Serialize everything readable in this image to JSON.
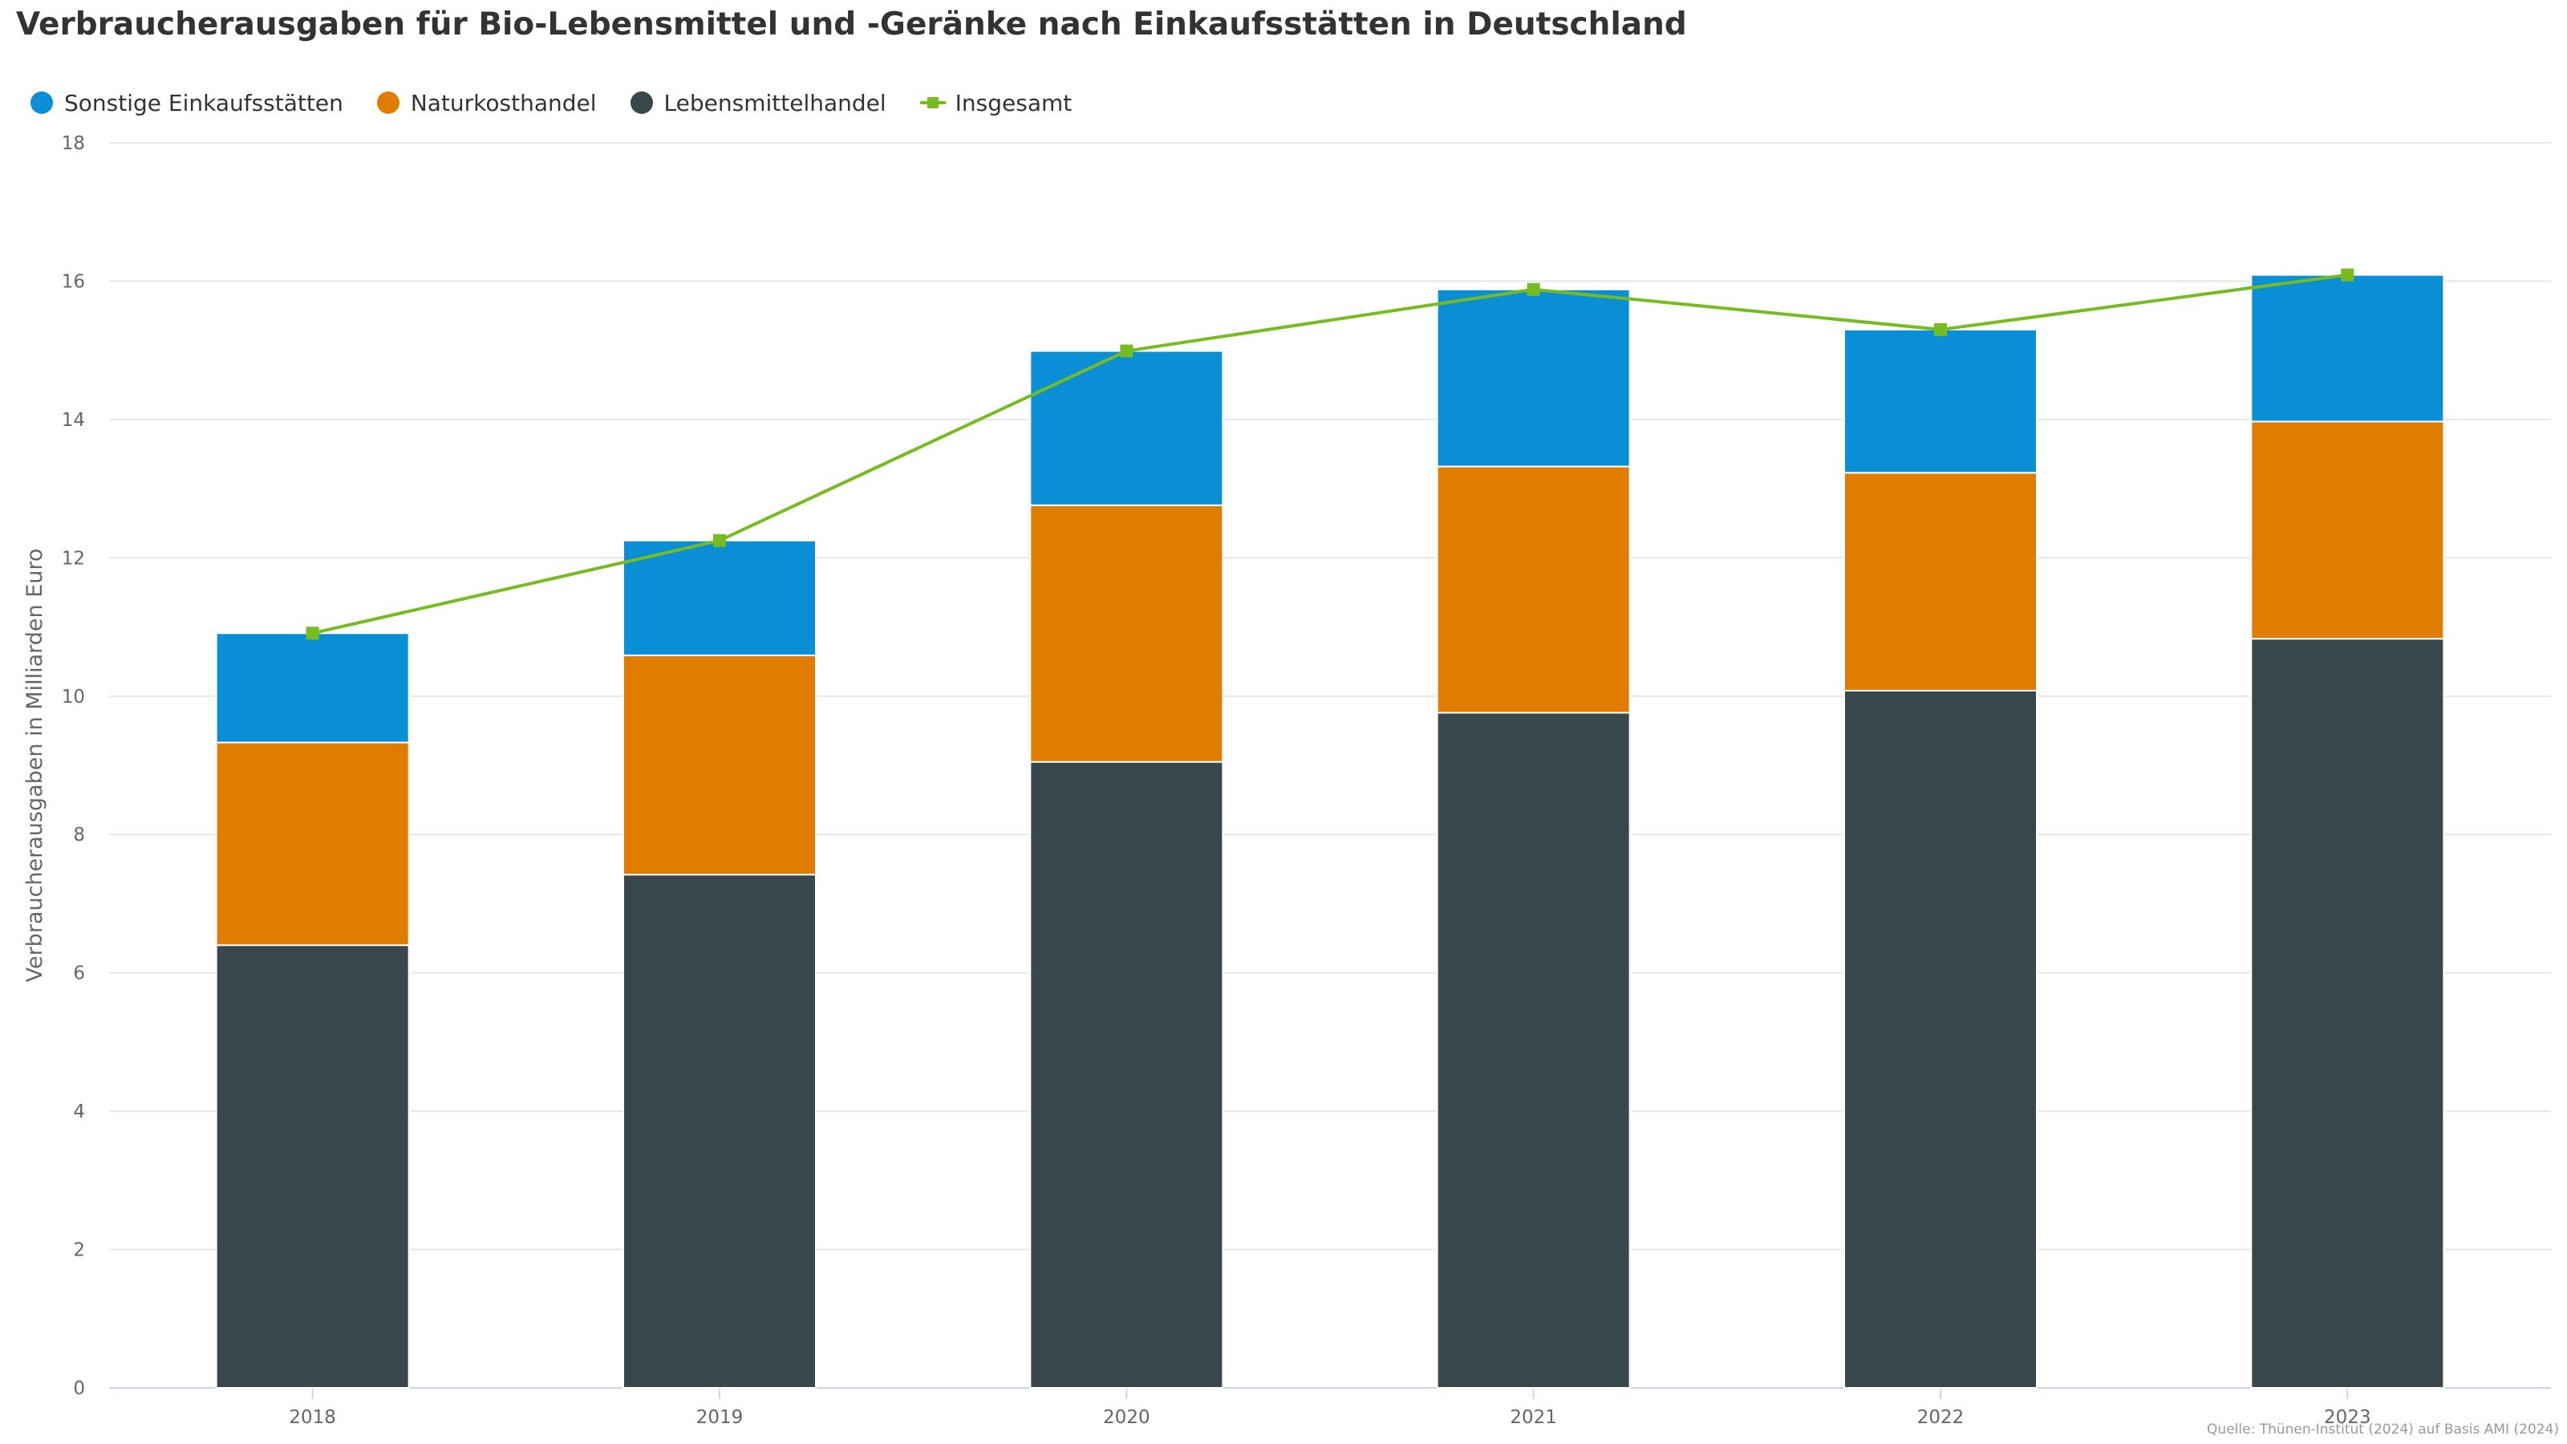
{
  "title": "Verbraucherausgaben für Bio-Lebensmittel und -Geränke nach Einkaufsstätten in Deutschland",
  "source": "Quelle: Thünen-Institut (2024) auf Basis AMI (2024)",
  "legend": [
    {
      "label": "Sonstige Einkaufsstätten",
      "color": "#0a8ed6",
      "marker": "circle-icon"
    },
    {
      "label": "Naturkosthandel",
      "color": "#e07c00",
      "marker": "circle-icon"
    },
    {
      "label": "Lebensmittelhandel",
      "color": "#37474c",
      "marker": "circle-icon"
    },
    {
      "label": "Insgesamt",
      "color": "#76bc21",
      "marker": "line-square-icon"
    }
  ],
  "chart_data": {
    "type": "bar",
    "stacked": true,
    "title": "Verbraucherausgaben für Bio-Lebensmittel und -Geränke nach Einkaufsstätten in Deutschland",
    "xlabel": "",
    "ylabel": "Verbraucherausgaben in Milliarden Euro",
    "ylim": [
      0,
      18
    ],
    "yticks": [
      0,
      2,
      4,
      6,
      8,
      10,
      12,
      14,
      16,
      18
    ],
    "grid": true,
    "legend_position": "top-left",
    "categories": [
      "2018",
      "2019",
      "2020",
      "2021",
      "2022",
      "2023"
    ],
    "series": [
      {
        "name": "Lebensmittelhandel",
        "type": "bar",
        "color": "#37474c",
        "values": [
          6.4,
          7.42,
          9.05,
          9.76,
          10.08,
          10.83
        ]
      },
      {
        "name": "Naturkosthandel",
        "type": "bar",
        "color": "#e07c00",
        "values": [
          2.93,
          3.17,
          3.71,
          3.56,
          3.15,
          3.14
        ]
      },
      {
        "name": "Sonstige Einkaufsstätten",
        "type": "bar",
        "color": "#0a8ed6",
        "values": [
          1.58,
          1.66,
          2.23,
          2.56,
          2.07,
          2.12
        ]
      },
      {
        "name": "Insgesamt",
        "type": "line",
        "color": "#76bc21",
        "values": [
          10.91,
          12.25,
          14.99,
          15.88,
          15.3,
          16.09
        ]
      }
    ]
  }
}
